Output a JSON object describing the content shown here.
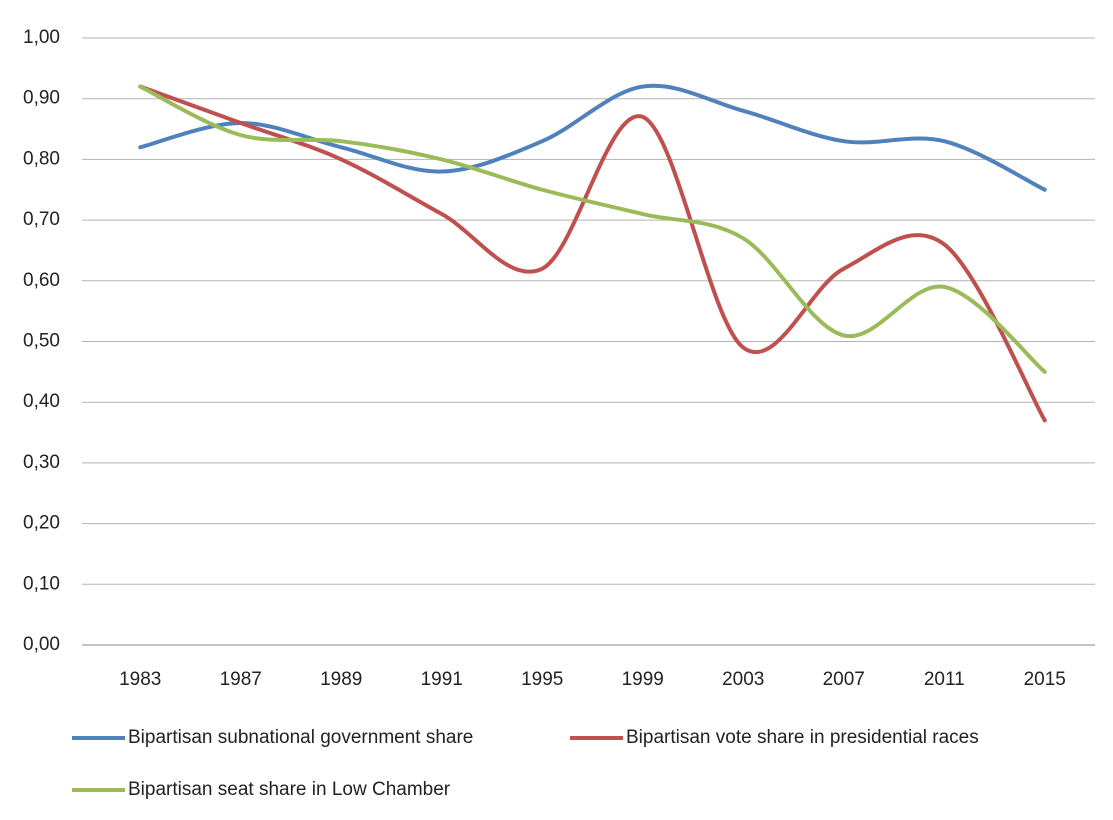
{
  "chart_data": {
    "type": "line",
    "categories": [
      "1983",
      "1987",
      "1989",
      "1991",
      "1995",
      "1999",
      "2003",
      "2007",
      "2011",
      "2015"
    ],
    "series": [
      {
        "name": "Bipartisan subnational government share",
        "color": "#4f81bd",
        "values": [
          0.82,
          0.86,
          0.82,
          0.78,
          0.83,
          0.92,
          0.88,
          0.83,
          0.83,
          0.75
        ]
      },
      {
        "name": "Bipartisan vote share in presidential races",
        "color": "#c0504d",
        "values": [
          0.92,
          0.86,
          0.8,
          0.71,
          0.62,
          0.87,
          0.49,
          0.62,
          0.66,
          0.37
        ]
      },
      {
        "name": "Bipartisan seat share in Low Chamber",
        "color": "#9bbb59",
        "values": [
          0.92,
          0.84,
          0.83,
          0.8,
          0.75,
          0.71,
          0.67,
          0.51,
          0.59,
          0.45
        ]
      }
    ],
    "ylim": [
      0,
      1
    ],
    "yticks": [
      {
        "value": 0,
        "label": "0,00"
      },
      {
        "value": 0.1,
        "label": "0,10"
      },
      {
        "value": 0.2,
        "label": "0,20"
      },
      {
        "value": 0.3,
        "label": "0,30"
      },
      {
        "value": 0.4,
        "label": "0,40"
      },
      {
        "value": 0.5,
        "label": "0,50"
      },
      {
        "value": 0.6,
        "label": "0,60"
      },
      {
        "value": 0.7,
        "label": "0,70"
      },
      {
        "value": 0.8,
        "label": "0,80"
      },
      {
        "value": 0.9,
        "label": "0,90"
      },
      {
        "value": 1,
        "label": "1,00"
      }
    ],
    "grid": true,
    "smooth": true
  }
}
